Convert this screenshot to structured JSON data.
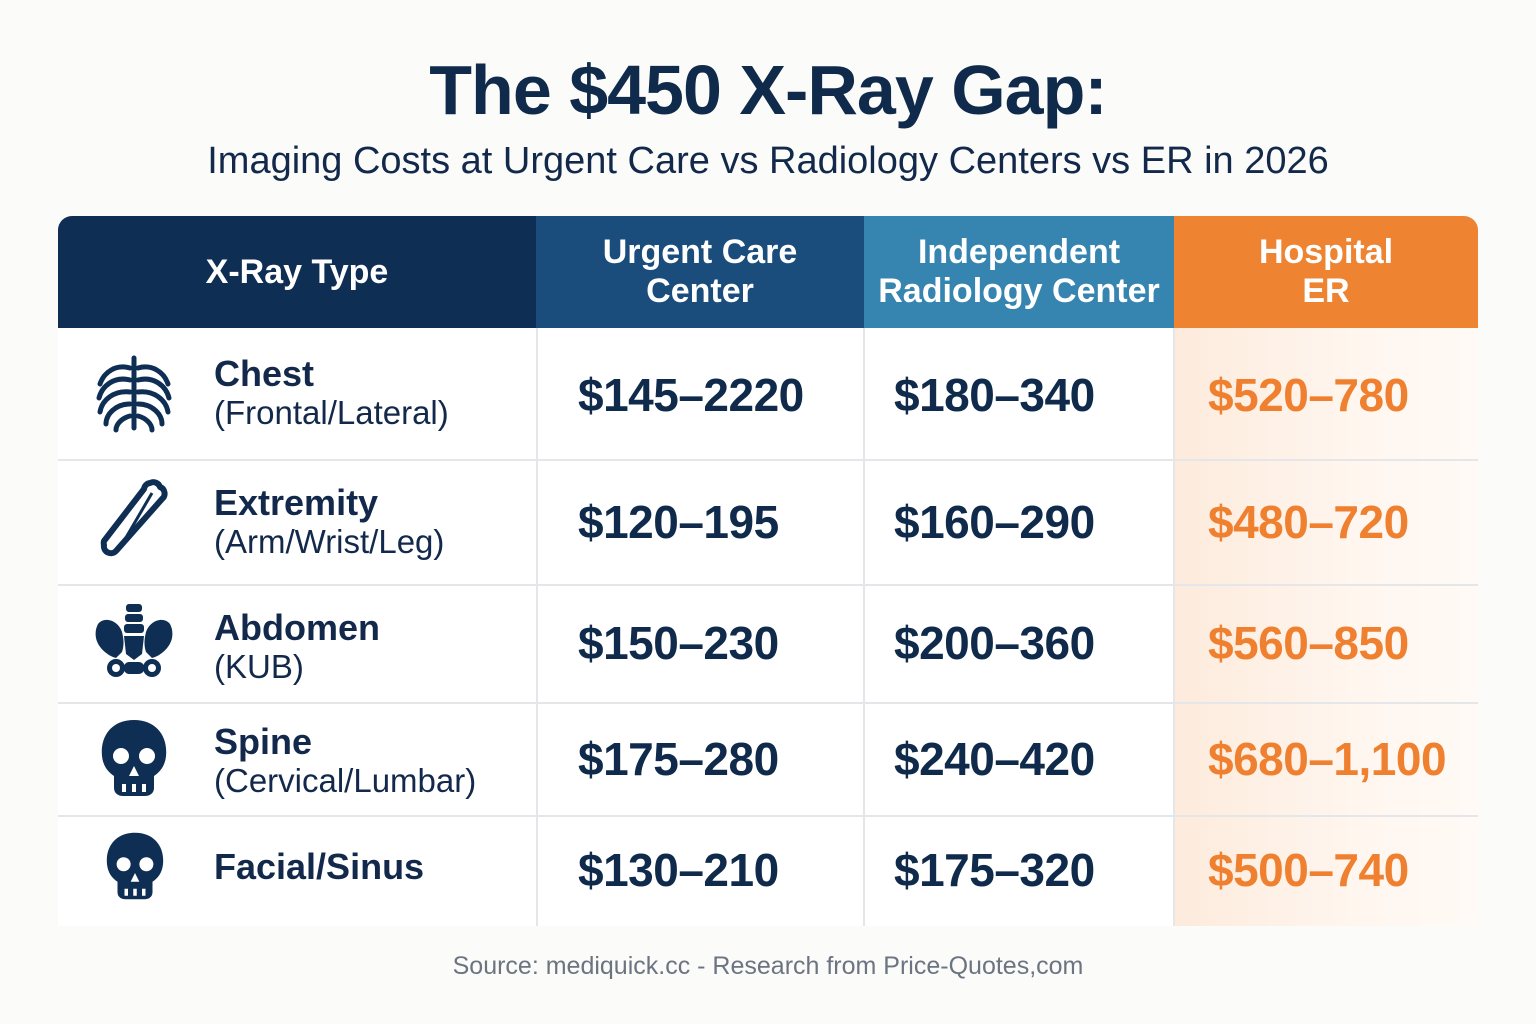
{
  "title": "The $450 X-Ray Gap:",
  "subtitle": "Imaging Costs at Urgent Care vs Radiology Centers vs ER in 2026",
  "columns": {
    "type": "X-Ray Type",
    "urgent": "Urgent Care\nCenter",
    "independent": "Independent\nRadiology Center",
    "er": "Hospital\nER"
  },
  "colors": {
    "header_type": "#0f2e54",
    "header_urgent": "#1a4c7c",
    "header_independent": "#3684b0",
    "header_er": "#ee8432",
    "er_price": "#ef8030",
    "text": "#13294b"
  },
  "rows": [
    {
      "icon": "ribcage-icon",
      "name": "Chest",
      "detail": "(Frontal/Lateral)",
      "urgent": "$145–2220",
      "independent": "$180–340",
      "er": "$520–780"
    },
    {
      "icon": "bone-icon",
      "name": "Extremity",
      "detail": "(Arm/Wrist/Leg)",
      "urgent": "$120–195",
      "independent": "$160–290",
      "er": "$480–720"
    },
    {
      "icon": "pelvis-icon",
      "name": "Abdomen",
      "detail": "(KUB)",
      "urgent": "$150–230",
      "independent": "$200–360",
      "er": "$560–850"
    },
    {
      "icon": "skull-icon",
      "name": "Spine",
      "detail": "(Cervical/Lumbar)",
      "urgent": "$175–280",
      "independent": "$240–420",
      "er": "$680–1,100"
    },
    {
      "icon": "skull-icon",
      "name": "Facial/Sinus",
      "detail": "",
      "urgent": "$130–210",
      "independent": "$175–320",
      "er": "$500–740"
    }
  ],
  "source": "Source: mediquick.cc - Research from Price-Quotes,com"
}
